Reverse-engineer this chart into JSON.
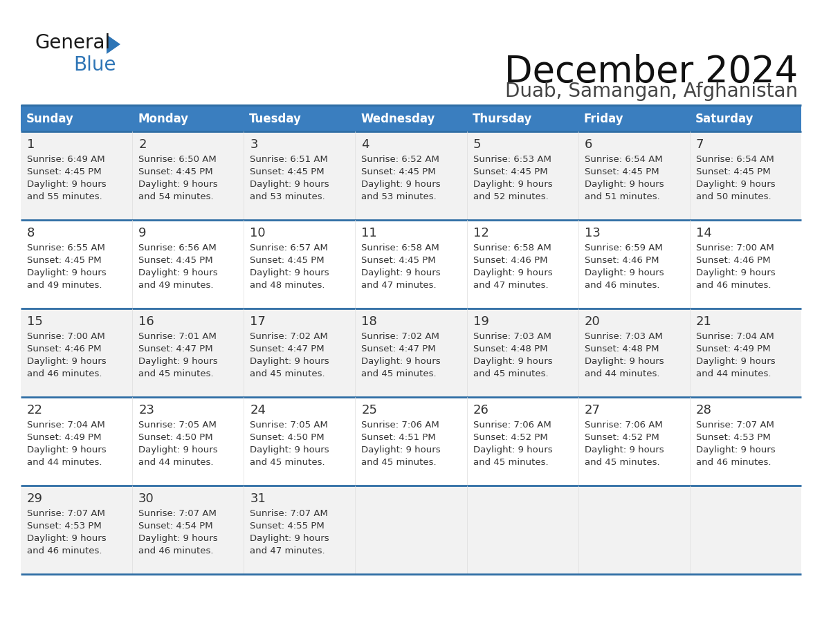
{
  "title": "December 2024",
  "subtitle": "Duab, Samangan, Afghanistan",
  "header_color": "#3A7EBF",
  "header_text_color": "#FFFFFF",
  "days_of_week": [
    "Sunday",
    "Monday",
    "Tuesday",
    "Wednesday",
    "Thursday",
    "Friday",
    "Saturday"
  ],
  "row_bg_colors": [
    "#F2F2F2",
    "#FFFFFF"
  ],
  "separator_color": "#2E6DA4",
  "text_color": "#333333",
  "logo_general_color": "#1A1A1A",
  "logo_blue_color": "#2E75B6",
  "cell_line_color": "#CCCCCC",
  "calendar_data": [
    [
      {
        "day": 1,
        "sunrise": "6:49 AM",
        "sunset": "4:45 PM",
        "daylight_hours": 9,
        "daylight_minutes": 55
      },
      {
        "day": 2,
        "sunrise": "6:50 AM",
        "sunset": "4:45 PM",
        "daylight_hours": 9,
        "daylight_minutes": 54
      },
      {
        "day": 3,
        "sunrise": "6:51 AM",
        "sunset": "4:45 PM",
        "daylight_hours": 9,
        "daylight_minutes": 53
      },
      {
        "day": 4,
        "sunrise": "6:52 AM",
        "sunset": "4:45 PM",
        "daylight_hours": 9,
        "daylight_minutes": 53
      },
      {
        "day": 5,
        "sunrise": "6:53 AM",
        "sunset": "4:45 PM",
        "daylight_hours": 9,
        "daylight_minutes": 52
      },
      {
        "day": 6,
        "sunrise": "6:54 AM",
        "sunset": "4:45 PM",
        "daylight_hours": 9,
        "daylight_minutes": 51
      },
      {
        "day": 7,
        "sunrise": "6:54 AM",
        "sunset": "4:45 PM",
        "daylight_hours": 9,
        "daylight_minutes": 50
      }
    ],
    [
      {
        "day": 8,
        "sunrise": "6:55 AM",
        "sunset": "4:45 PM",
        "daylight_hours": 9,
        "daylight_minutes": 49
      },
      {
        "day": 9,
        "sunrise": "6:56 AM",
        "sunset": "4:45 PM",
        "daylight_hours": 9,
        "daylight_minutes": 49
      },
      {
        "day": 10,
        "sunrise": "6:57 AM",
        "sunset": "4:45 PM",
        "daylight_hours": 9,
        "daylight_minutes": 48
      },
      {
        "day": 11,
        "sunrise": "6:58 AM",
        "sunset": "4:45 PM",
        "daylight_hours": 9,
        "daylight_minutes": 47
      },
      {
        "day": 12,
        "sunrise": "6:58 AM",
        "sunset": "4:46 PM",
        "daylight_hours": 9,
        "daylight_minutes": 47
      },
      {
        "day": 13,
        "sunrise": "6:59 AM",
        "sunset": "4:46 PM",
        "daylight_hours": 9,
        "daylight_minutes": 46
      },
      {
        "day": 14,
        "sunrise": "7:00 AM",
        "sunset": "4:46 PM",
        "daylight_hours": 9,
        "daylight_minutes": 46
      }
    ],
    [
      {
        "day": 15,
        "sunrise": "7:00 AM",
        "sunset": "4:46 PM",
        "daylight_hours": 9,
        "daylight_minutes": 46
      },
      {
        "day": 16,
        "sunrise": "7:01 AM",
        "sunset": "4:47 PM",
        "daylight_hours": 9,
        "daylight_minutes": 45
      },
      {
        "day": 17,
        "sunrise": "7:02 AM",
        "sunset": "4:47 PM",
        "daylight_hours": 9,
        "daylight_minutes": 45
      },
      {
        "day": 18,
        "sunrise": "7:02 AM",
        "sunset": "4:47 PM",
        "daylight_hours": 9,
        "daylight_minutes": 45
      },
      {
        "day": 19,
        "sunrise": "7:03 AM",
        "sunset": "4:48 PM",
        "daylight_hours": 9,
        "daylight_minutes": 45
      },
      {
        "day": 20,
        "sunrise": "7:03 AM",
        "sunset": "4:48 PM",
        "daylight_hours": 9,
        "daylight_minutes": 44
      },
      {
        "day": 21,
        "sunrise": "7:04 AM",
        "sunset": "4:49 PM",
        "daylight_hours": 9,
        "daylight_minutes": 44
      }
    ],
    [
      {
        "day": 22,
        "sunrise": "7:04 AM",
        "sunset": "4:49 PM",
        "daylight_hours": 9,
        "daylight_minutes": 44
      },
      {
        "day": 23,
        "sunrise": "7:05 AM",
        "sunset": "4:50 PM",
        "daylight_hours": 9,
        "daylight_minutes": 44
      },
      {
        "day": 24,
        "sunrise": "7:05 AM",
        "sunset": "4:50 PM",
        "daylight_hours": 9,
        "daylight_minutes": 45
      },
      {
        "day": 25,
        "sunrise": "7:06 AM",
        "sunset": "4:51 PM",
        "daylight_hours": 9,
        "daylight_minutes": 45
      },
      {
        "day": 26,
        "sunrise": "7:06 AM",
        "sunset": "4:52 PM",
        "daylight_hours": 9,
        "daylight_minutes": 45
      },
      {
        "day": 27,
        "sunrise": "7:06 AM",
        "sunset": "4:52 PM",
        "daylight_hours": 9,
        "daylight_minutes": 45
      },
      {
        "day": 28,
        "sunrise": "7:07 AM",
        "sunset": "4:53 PM",
        "daylight_hours": 9,
        "daylight_minutes": 46
      }
    ],
    [
      {
        "day": 29,
        "sunrise": "7:07 AM",
        "sunset": "4:53 PM",
        "daylight_hours": 9,
        "daylight_minutes": 46
      },
      {
        "day": 30,
        "sunrise": "7:07 AM",
        "sunset": "4:54 PM",
        "daylight_hours": 9,
        "daylight_minutes": 46
      },
      {
        "day": 31,
        "sunrise": "7:07 AM",
        "sunset": "4:55 PM",
        "daylight_hours": 9,
        "daylight_minutes": 47
      },
      null,
      null,
      null,
      null
    ]
  ]
}
